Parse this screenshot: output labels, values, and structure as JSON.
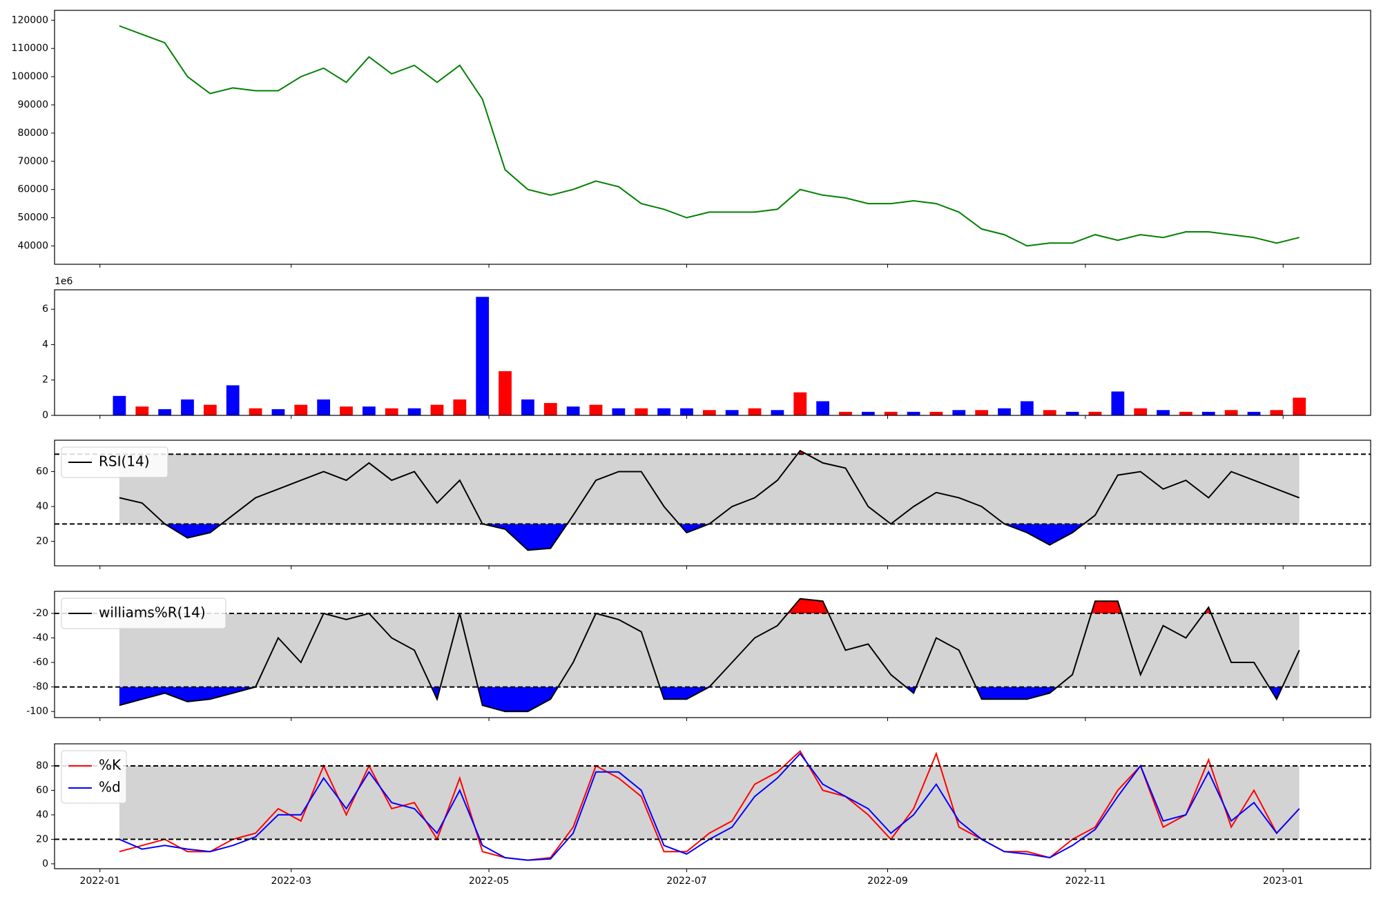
{
  "chart_data": {
    "x": [
      "2022-01-07",
      "2022-01-14",
      "2022-01-21",
      "2022-01-28",
      "2022-02-04",
      "2022-02-11",
      "2022-02-18",
      "2022-02-25",
      "2022-03-04",
      "2022-03-11",
      "2022-03-18",
      "2022-03-25",
      "2022-04-01",
      "2022-04-08",
      "2022-04-15",
      "2022-04-22",
      "2022-04-29",
      "2022-05-06",
      "2022-05-13",
      "2022-05-20",
      "2022-05-27",
      "2022-06-03",
      "2022-06-10",
      "2022-06-17",
      "2022-06-24",
      "2022-07-01",
      "2022-07-08",
      "2022-07-15",
      "2022-07-22",
      "2022-07-29",
      "2022-08-05",
      "2022-08-12",
      "2022-08-19",
      "2022-08-26",
      "2022-09-02",
      "2022-09-09",
      "2022-09-16",
      "2022-09-23",
      "2022-09-30",
      "2022-10-07",
      "2022-10-14",
      "2022-10-21",
      "2022-10-28",
      "2022-11-04",
      "2022-11-11",
      "2022-11-18",
      "2022-11-25",
      "2022-12-02",
      "2022-12-09",
      "2022-12-16",
      "2022-12-23",
      "2022-12-30",
      "2023-01-06"
    ],
    "xlim": [
      "2021-12-18",
      "2023-01-28"
    ],
    "xticks": [
      {
        "value": "2022-01-01",
        "label": "2022-01"
      },
      {
        "value": "2022-03-01",
        "label": "2022-03"
      },
      {
        "value": "2022-05-01",
        "label": "2022-05"
      },
      {
        "value": "2022-07-01",
        "label": "2022-07"
      },
      {
        "value": "2022-09-01",
        "label": "2022-09"
      },
      {
        "value": "2022-11-01",
        "label": "2022-11"
      },
      {
        "value": "2023-01-01",
        "label": "2023-01"
      }
    ],
    "panels": [
      {
        "type": "line",
        "ylim": [
          33500,
          123500
        ],
        "yticks": [
          40000,
          50000,
          60000,
          70000,
          80000,
          90000,
          100000,
          110000,
          120000
        ],
        "series": [
          {
            "color": "green",
            "values": [
              118000,
              115000,
              112000,
              100000,
              94000,
              96000,
              95000,
              95000,
              100000,
              103000,
              98000,
              107000,
              101000,
              104000,
              98000,
              104000,
              92000,
              67000,
              60000,
              58000,
              60000,
              63000,
              61000,
              55000,
              53000,
              50000,
              52000,
              52000,
              52000,
              53000,
              60000,
              58000,
              57000,
              55000,
              55000,
              56000,
              55000,
              52000,
              46000,
              44000,
              40000,
              41000,
              41000,
              44000,
              42000,
              44000,
              43000,
              45000,
              45000,
              44000,
              43000,
              41000,
              43000
            ]
          }
        ]
      },
      {
        "type": "bar",
        "ylim": [
          0,
          7.1
        ],
        "yticks": [
          0,
          2,
          4,
          6
        ],
        "offset_label": "1e6",
        "series": [
          {
            "values": [
              1.1,
              0.5,
              0.35,
              0.9,
              0.6,
              1.7,
              0.4,
              0.35,
              0.6,
              0.9,
              0.5,
              0.5,
              0.4,
              0.4,
              0.6,
              0.9,
              6.7,
              2.5,
              0.9,
              0.7,
              0.5,
              0.6,
              0.4,
              0.4,
              0.4,
              0.4,
              0.3,
              0.3,
              0.4,
              0.3,
              1.3,
              0.8,
              0.2,
              0.2,
              0.2,
              0.2,
              0.2,
              0.3,
              0.3,
              0.4,
              0.8,
              0.3,
              0.2,
              0.2,
              1.35,
              0.4,
              0.3,
              0.2,
              0.2,
              0.3,
              0.2,
              0.3,
              1.0
            ],
            "colors": [
              "blue",
              "red",
              "blue",
              "blue",
              "red",
              "blue",
              "red",
              "blue",
              "red",
              "blue",
              "red",
              "blue",
              "red",
              "blue",
              "red",
              "red",
              "blue",
              "red",
              "blue",
              "red",
              "blue",
              "red",
              "blue",
              "red",
              "blue",
              "blue",
              "red",
              "blue",
              "red",
              "blue",
              "red",
              "blue",
              "red",
              "blue",
              "red",
              "blue",
              "red",
              "blue",
              "red",
              "blue",
              "blue",
              "red",
              "blue",
              "red",
              "blue",
              "red",
              "blue",
              "red",
              "blue",
              "red",
              "blue",
              "red",
              "red"
            ]
          }
        ]
      },
      {
        "type": "line",
        "ylim": [
          6,
          78
        ],
        "yticks": [
          20,
          40,
          60
        ],
        "hlines": [
          30,
          70
        ],
        "legend": "upper left",
        "fill_below": "blue",
        "fill_above": "red",
        "series": [
          {
            "name": "RSI(14)",
            "color": "black",
            "values": [
              45,
              42,
              30,
              22,
              25,
              35,
              45,
              50,
              55,
              60,
              55,
              65,
              55,
              60,
              42,
              55,
              30,
              27,
              15,
              16,
              35,
              55,
              60,
              60,
              40,
              25,
              30,
              40,
              45,
              55,
              72,
              65,
              62,
              40,
              30,
              40,
              48,
              45,
              40,
              30,
              25,
              18,
              25,
              35,
              58,
              60,
              50,
              55,
              45,
              60,
              55,
              50,
              45
            ]
          }
        ]
      },
      {
        "type": "line",
        "ylim": [
          -105,
          -2
        ],
        "yticks": [
          -100,
          -80,
          -60,
          -40,
          -20
        ],
        "hlines": [
          -80,
          -20
        ],
        "legend": "upper left",
        "fill_below": "blue",
        "fill_above": "red",
        "series": [
          {
            "name": "williams%R(14)",
            "color": "black",
            "values": [
              -95,
              -90,
              -85,
              -92,
              -90,
              -85,
              -80,
              -40,
              -60,
              -20,
              -25,
              -20,
              -40,
              -50,
              -90,
              -20,
              -95,
              -100,
              -100,
              -90,
              -60,
              -20,
              -25,
              -35,
              -90,
              -90,
              -80,
              -60,
              -40,
              -30,
              -8,
              -10,
              -50,
              -45,
              -70,
              -85,
              -40,
              -50,
              -90,
              -90,
              -90,
              -85,
              -70,
              -10,
              -10,
              -70,
              -30,
              -40,
              -15,
              -60,
              -60,
              -90,
              -50
            ]
          }
        ]
      },
      {
        "type": "line",
        "ylim": [
          -4,
          98
        ],
        "yticks": [
          0,
          20,
          40,
          60,
          80
        ],
        "hlines": [
          20,
          80
        ],
        "legend": "upper left",
        "series": [
          {
            "name": "%K",
            "color": "red",
            "values": [
              10,
              15,
              20,
              10,
              10,
              20,
              25,
              45,
              35,
              80,
              40,
              80,
              45,
              50,
              20,
              70,
              10,
              5,
              3,
              5,
              30,
              80,
              70,
              55,
              10,
              10,
              25,
              35,
              65,
              75,
              92,
              60,
              55,
              40,
              20,
              45,
              90,
              30,
              20,
              10,
              10,
              5,
              20,
              30,
              60,
              80,
              30,
              40,
              85,
              30,
              60,
              25,
              45
            ]
          },
          {
            "name": "%d",
            "color": "blue",
            "values": [
              20,
              12,
              15,
              12,
              10,
              15,
              22,
              40,
              40,
              70,
              45,
              75,
              50,
              45,
              25,
              60,
              15,
              5,
              3,
              4,
              25,
              75,
              75,
              60,
              15,
              8,
              20,
              30,
              55,
              70,
              90,
              65,
              55,
              45,
              25,
              40,
              65,
              35,
              20,
              10,
              8,
              5,
              15,
              28,
              55,
              80,
              35,
              40,
              75,
              35,
              50,
              25,
              45
            ]
          }
        ]
      }
    ]
  }
}
